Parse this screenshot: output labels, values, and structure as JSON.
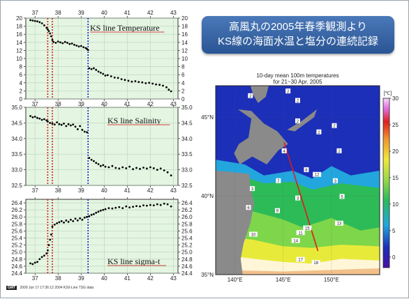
{
  "banner": {
    "line1": "高風丸の2005年春季観測より",
    "line2": "KS線の海面水温と塩分の連続記録"
  },
  "footer": {
    "badge": "GMT",
    "text": "2009 Jun 17 17:36:12   2004 KS0-Line TSG data"
  },
  "colors": {
    "panel_bg": "#e4f5e2",
    "grid": "#b9d3b9",
    "red_line": "#d42020",
    "blue_line": "#1a22c8",
    "title_underline": "#d84040"
  },
  "chart_data": [
    {
      "type": "scatter",
      "title": "KS line Temperature",
      "x_tick_labels": [
        "37",
        "38",
        "39",
        "40",
        "41",
        "42",
        "43"
      ],
      "y_tick_labels": [
        "0",
        "2",
        "4",
        "6",
        "8",
        "10",
        "12",
        "14",
        "16",
        "18",
        "20"
      ],
      "xlim": [
        36.6,
        43.2
      ],
      "ylim": [
        0,
        20
      ],
      "grid": true,
      "vertical_lines": [
        {
          "x": 37.55,
          "color": "red"
        },
        {
          "x": 37.75,
          "color": "red"
        },
        {
          "x": 39.3,
          "color": "blue"
        }
      ],
      "x": [
        36.8,
        36.9,
        37.0,
        37.1,
        37.2,
        37.3,
        37.4,
        37.5,
        37.55,
        37.6,
        37.65,
        37.7,
        37.75,
        37.8,
        37.9,
        38.0,
        38.1,
        38.2,
        38.3,
        38.4,
        38.5,
        38.6,
        38.7,
        38.8,
        38.9,
        39.0,
        39.1,
        39.2,
        39.25,
        39.3,
        39.35,
        39.45,
        39.55,
        39.65,
        39.75,
        39.85,
        39.95,
        40.05,
        40.15,
        40.3,
        40.45,
        40.6,
        40.75,
        40.9,
        41.05,
        41.2,
        41.35,
        41.5,
        41.65,
        41.8,
        41.95,
        42.1,
        42.25,
        42.4,
        42.55,
        42.7,
        42.8,
        42.9
      ],
      "y": [
        19.5,
        19.4,
        19.3,
        19.2,
        19.0,
        18.7,
        18.2,
        17.6,
        17.2,
        16.8,
        16.2,
        15.5,
        14.6,
        14.1,
        13.9,
        14.2,
        14.0,
        13.8,
        14.1,
        13.9,
        13.6,
        13.7,
        13.4,
        13.2,
        13.0,
        13.1,
        12.8,
        12.6,
        12.4,
        12.1,
        7.6,
        7.4,
        7.6,
        7.2,
        6.8,
        6.5,
        6.2,
        5.8,
        5.9,
        5.6,
        5.3,
        5.2,
        4.9,
        4.7,
        4.5,
        4.3,
        4.4,
        4.2,
        4.1,
        3.9,
        4.0,
        3.8,
        3.6,
        3.5,
        3.3,
        2.9,
        2.3,
        1.9
      ]
    },
    {
      "type": "scatter",
      "title": "KS line Salinity",
      "x_tick_labels": [
        "37",
        "38",
        "39",
        "40",
        "41",
        "42",
        "43"
      ],
      "y_tick_labels": [
        "32.5",
        "33.0",
        "33.5",
        "34.0",
        "34.5",
        "35.0"
      ],
      "xlim": [
        36.6,
        43.2
      ],
      "ylim": [
        32.5,
        35.0
      ],
      "grid": true,
      "vertical_lines": [
        {
          "x": 37.55,
          "color": "red"
        },
        {
          "x": 37.75,
          "color": "red"
        },
        {
          "x": 39.3,
          "color": "blue"
        }
      ],
      "x": [
        36.8,
        36.9,
        37.0,
        37.1,
        37.2,
        37.3,
        37.4,
        37.5,
        37.55,
        37.65,
        37.75,
        37.85,
        37.95,
        38.05,
        38.15,
        38.25,
        38.35,
        38.45,
        38.55,
        38.65,
        38.75,
        38.85,
        38.95,
        39.05,
        39.15,
        39.25,
        39.35,
        39.45,
        39.55,
        39.65,
        39.75,
        39.85,
        39.95,
        40.05,
        40.2,
        40.35,
        40.5,
        40.65,
        40.8,
        40.95,
        41.1,
        41.25,
        41.4,
        41.55,
        41.7,
        41.85,
        42.0,
        42.15,
        42.3,
        42.45,
        42.6,
        42.75,
        42.9
      ],
      "y": [
        34.72,
        34.68,
        34.7,
        34.66,
        34.64,
        34.6,
        34.62,
        34.58,
        34.55,
        34.5,
        34.48,
        34.45,
        34.52,
        34.46,
        34.44,
        34.48,
        34.4,
        34.46,
        34.42,
        34.45,
        34.38,
        34.3,
        34.4,
        34.28,
        34.22,
        34.2,
        33.38,
        33.32,
        33.28,
        33.22,
        33.18,
        33.12,
        33.15,
        33.1,
        33.08,
        33.12,
        33.06,
        33.04,
        33.08,
        33.05,
        33.1,
        33.02,
        33.06,
        33.03,
        33.07,
        33.04,
        33.08,
        33.05,
        33.0,
        33.04,
        32.98,
        32.92,
        32.82
      ]
    },
    {
      "type": "scatter",
      "title": "KS line sigma-t",
      "x_tick_labels": [
        "37",
        "38",
        "39",
        "40",
        "41",
        "42",
        "43"
      ],
      "y_tick_labels": [
        "24.4",
        "24.6",
        "24.8",
        "25.0",
        "25.2",
        "25.4",
        "25.6",
        "25.8",
        "26.0",
        "26.2",
        "26.4"
      ],
      "xlim": [
        36.6,
        43.2
      ],
      "ylim": [
        24.4,
        26.5
      ],
      "grid": true,
      "vertical_lines": [
        {
          "x": 37.55,
          "color": "red"
        },
        {
          "x": 37.75,
          "color": "red"
        },
        {
          "x": 39.3,
          "color": "blue"
        }
      ],
      "x": [
        36.8,
        36.9,
        37.0,
        37.1,
        37.2,
        37.3,
        37.4,
        37.5,
        37.55,
        37.6,
        37.65,
        37.7,
        37.75,
        37.85,
        37.95,
        38.05,
        38.15,
        38.25,
        38.35,
        38.45,
        38.55,
        38.65,
        38.75,
        38.85,
        38.95,
        39.05,
        39.15,
        39.25,
        39.35,
        39.45,
        39.55,
        39.65,
        39.75,
        39.85,
        39.95,
        40.05,
        40.2,
        40.35,
        40.5,
        40.65,
        40.8,
        40.95,
        41.1,
        41.25,
        41.4,
        41.55,
        41.7,
        41.85,
        42.0,
        42.15,
        42.3,
        42.45,
        42.6,
        42.75,
        42.9
      ],
      "y": [
        24.68,
        24.66,
        24.7,
        24.72,
        24.8,
        24.86,
        24.9,
        24.96,
        25.05,
        25.2,
        25.35,
        25.5,
        25.72,
        25.78,
        25.82,
        25.85,
        25.88,
        25.84,
        25.9,
        25.86,
        25.92,
        25.88,
        25.95,
        25.9,
        25.96,
        25.92,
        25.98,
        26.0,
        26.02,
        26.06,
        26.08,
        26.12,
        26.15,
        26.18,
        26.2,
        26.22,
        26.25,
        26.24,
        26.26,
        26.28,
        26.25,
        26.3,
        26.27,
        26.29,
        26.31,
        26.3,
        26.33,
        26.32,
        26.34,
        26.33,
        26.36,
        26.34,
        26.38,
        26.36,
        26.3
      ]
    },
    {
      "type": "heatmap",
      "title": "10-day mean 100m temperatures",
      "subtitle": "for 21~30 Apr. 2005",
      "x_tick_labels": [
        "140°E",
        "145°E",
        "150°E"
      ],
      "y_tick_labels": [
        "35°N",
        "40°N",
        "45°N"
      ],
      "xlim": [
        138,
        155
      ],
      "ylim": [
        35,
        47
      ],
      "colorbar": {
        "unit": "[℃]",
        "tick_labels": [
          "0",
          "5",
          "10",
          "15",
          "20",
          "25",
          "30"
        ],
        "range": [
          -2,
          30
        ]
      },
      "transect": {
        "start": [
          145.1,
          43.4
        ],
        "end": [
          148.6,
          36.5
        ]
      },
      "contour_labels": [
        {
          "text": "2",
          "lon": 141.6,
          "lat": 46.3
        },
        {
          "text": "2",
          "lon": 145.5,
          "lat": 46.6
        },
        {
          "text": "2",
          "lon": 146.5,
          "lat": 46.0
        },
        {
          "text": "2",
          "lon": 148.7,
          "lat": 44.0
        },
        {
          "text": "2",
          "lon": 150.3,
          "lat": 44.4
        },
        {
          "text": "2",
          "lon": 150.8,
          "lat": 42.8
        },
        {
          "text": "2",
          "lon": 146.5,
          "lat": 44.7
        },
        {
          "text": "3",
          "lon": 150.4,
          "lat": 40.9
        },
        {
          "text": "3",
          "lon": 146.5,
          "lat": 39.8
        },
        {
          "text": "3",
          "lon": 141.8,
          "lat": 40.4
        },
        {
          "text": "4",
          "lon": 145.1,
          "lat": 42.8
        },
        {
          "text": "5",
          "lon": 151.1,
          "lat": 39.9
        },
        {
          "text": "6",
          "lon": 141.4,
          "lat": 39.2
        },
        {
          "text": "7",
          "lon": 144.5,
          "lat": 40.9
        },
        {
          "text": "8",
          "lon": 147.4,
          "lat": 41.6
        },
        {
          "text": "9",
          "lon": 144.4,
          "lat": 39.0
        },
        {
          "text": "10",
          "lon": 141.9,
          "lat": 37.5
        },
        {
          "text": "11",
          "lon": 146.8,
          "lat": 37.6
        },
        {
          "text": "12",
          "lon": 148.5,
          "lat": 41.3
        },
        {
          "text": "13",
          "lon": 150.8,
          "lat": 38.2
        },
        {
          "text": "14",
          "lon": 146.3,
          "lat": 37.1
        },
        {
          "text": "15",
          "lon": 147.5,
          "lat": 37.9
        },
        {
          "text": "17",
          "lon": 146.8,
          "lat": 35.9
        },
        {
          "text": "18",
          "lon": 148.4,
          "lat": 35.7
        }
      ]
    }
  ]
}
